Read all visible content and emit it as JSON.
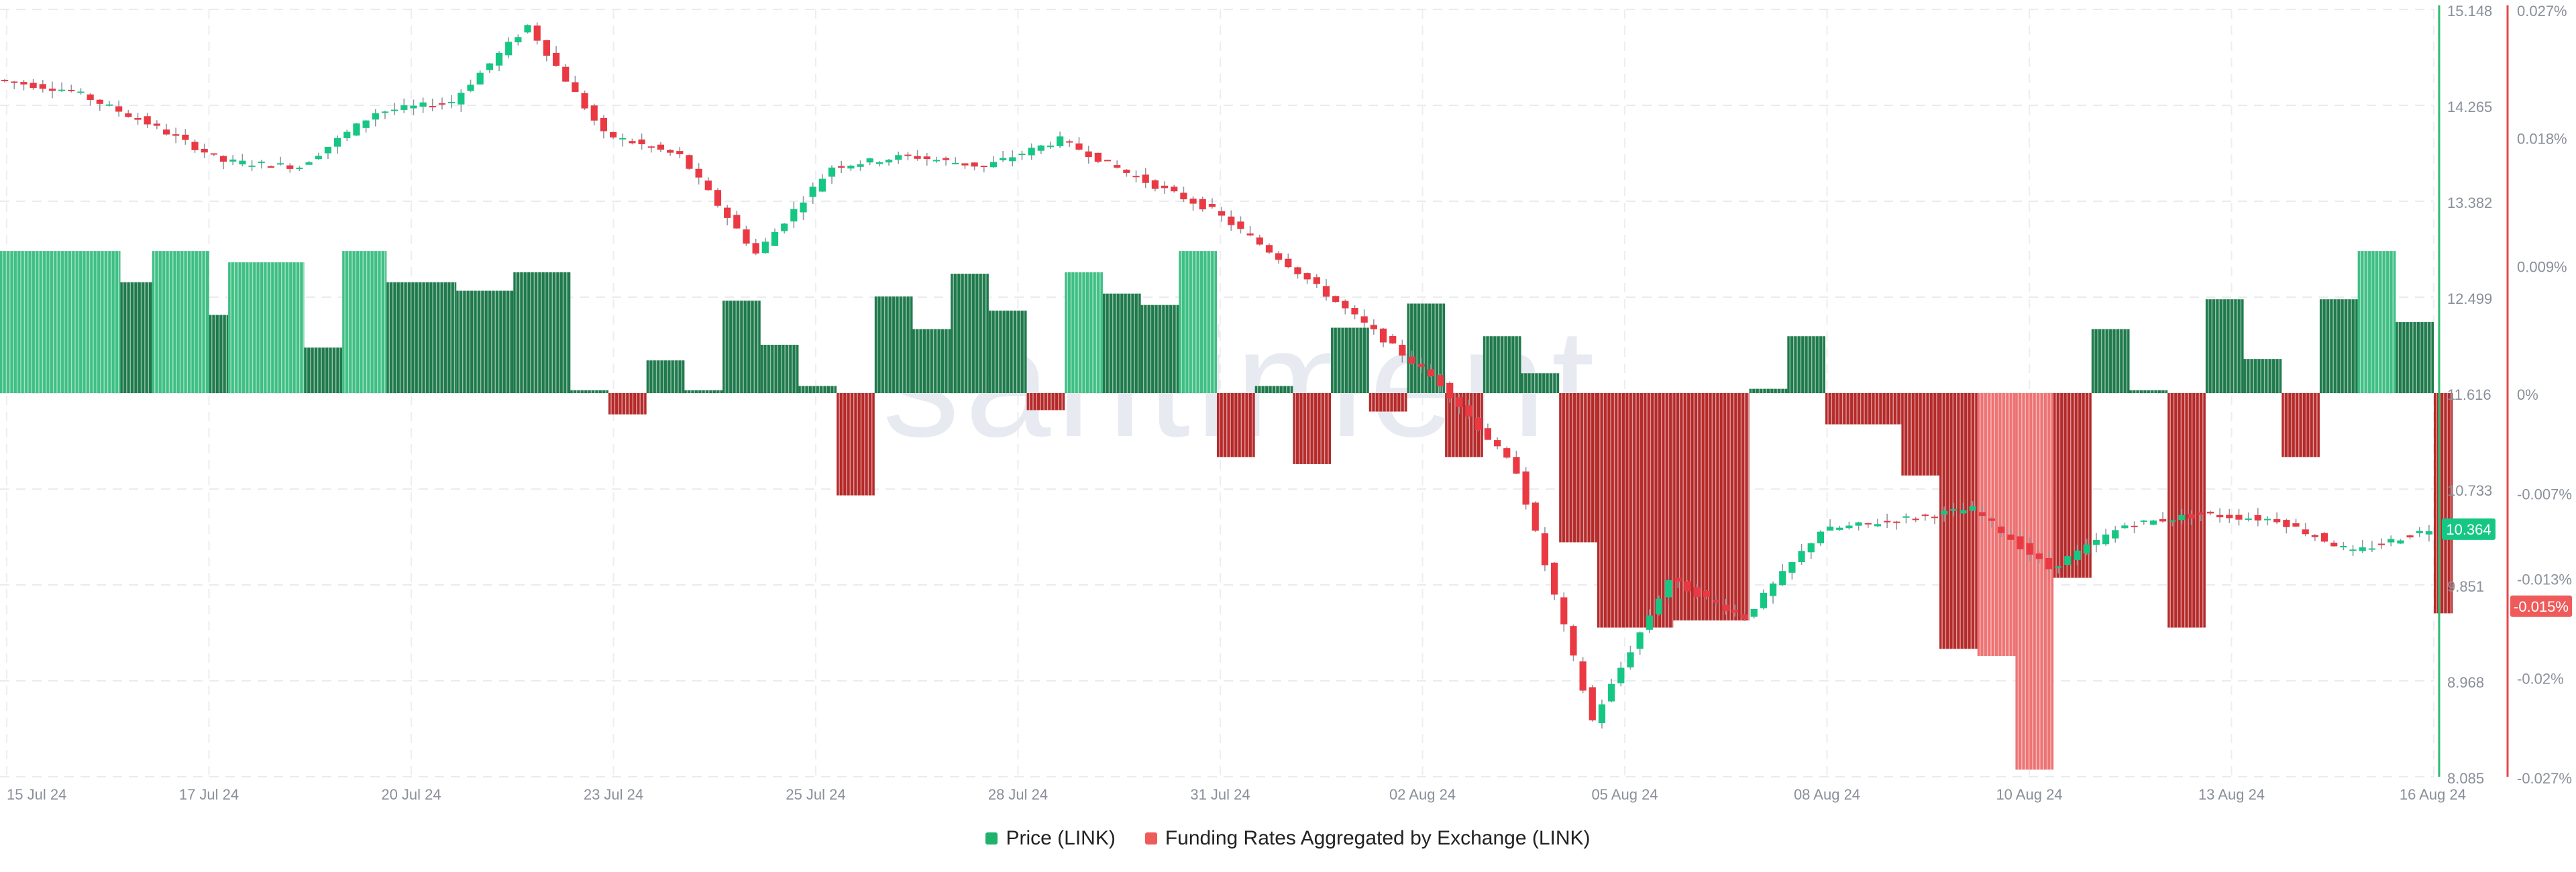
{
  "watermark": "santiment",
  "chart_data": {
    "type": "candlestick+bar",
    "x_ticks": [
      "15 Jul 24",
      "17 Jul 24",
      "20 Jul 24",
      "23 Jul 24",
      "25 Jul 24",
      "28 Jul 24",
      "31 Jul 24",
      "02 Aug 24",
      "05 Aug 24",
      "08 Aug 24",
      "10 Aug 24",
      "13 Aug 24",
      "16 Aug 24"
    ],
    "x_range": [
      "2024-07-15",
      "2024-08-16"
    ],
    "y_left": {
      "title": "Price (LINK)",
      "ticks": [
        "15.148",
        "14.265",
        "13.382",
        "12.499",
        "11.616",
        "10.733",
        "9.851",
        "8.968",
        "8.085"
      ],
      "range": [
        8.085,
        15.148
      ],
      "current_label": "10.364",
      "current_value": 10.364
    },
    "y_right": {
      "title": "Funding Rates Aggregated by Exchange (LINK)",
      "ticks": [
        "0.027%",
        "0.018%",
        "0.009%",
        "0%",
        "-0.007%",
        "-0.013%",
        "-0.02%",
        "-0.027%"
      ],
      "range": [
        -0.027,
        0.027
      ],
      "current_label": "-0.015%",
      "current_value": -0.015
    },
    "legend": [
      {
        "name": "Price (LINK)",
        "color": "#1eb26a"
      },
      {
        "name": "Funding Rates Aggregated by Exchange (LINK)",
        "color": "#ef5b5b"
      }
    ],
    "legend_position": "bottom-center",
    "grid": true,
    "colors": {
      "price_up": "#16c784",
      "price_down": "#ea3943",
      "rate_pos": "#1f7a4c",
      "rate_pos_light": "#3fbf84",
      "rate_neg": "#b52a2a",
      "rate_neg_light": "#ee7373",
      "price_axis": "#2bbd6e",
      "rate_axis": "#e5484d"
    },
    "series": [
      {
        "name": "Price (LINK)",
        "anchors": [
          [
            "2024-07-15",
            14.5
          ],
          [
            "2024-07-16",
            14.4
          ],
          [
            "2024-07-17",
            14.1
          ],
          [
            "2024-07-18",
            13.75
          ],
          [
            "2024-07-19",
            13.7
          ],
          [
            "2024-07-20",
            14.2
          ],
          [
            "2024-07-21",
            14.3
          ],
          [
            "2024-07-22",
            15.0
          ],
          [
            "2024-07-23",
            14.0
          ],
          [
            "2024-07-24",
            13.8
          ],
          [
            "2024-07-25",
            12.9
          ],
          [
            "2024-07-26",
            13.7
          ],
          [
            "2024-07-27",
            13.8
          ],
          [
            "2024-07-28",
            13.7
          ],
          [
            "2024-07-29",
            13.95
          ],
          [
            "2024-07-30",
            13.6
          ],
          [
            "2024-07-31",
            13.3
          ],
          [
            "2024-08-01",
            12.8
          ],
          [
            "2024-08-02",
            12.25
          ],
          [
            "2024-08-03",
            11.7
          ],
          [
            "2024-08-04",
            10.9
          ],
          [
            "2024-08-05",
            8.6
          ],
          [
            "2024-08-06",
            9.9
          ],
          [
            "2024-08-07",
            9.55
          ],
          [
            "2024-08-08",
            10.35
          ],
          [
            "2024-08-09",
            10.45
          ],
          [
            "2024-08-10",
            10.55
          ],
          [
            "2024-08-11",
            10.0
          ],
          [
            "2024-08-12",
            10.4
          ],
          [
            "2024-08-13",
            10.5
          ],
          [
            "2024-08-14",
            10.45
          ],
          [
            "2024-08-15",
            10.15
          ],
          [
            "2024-08-16",
            10.364
          ]
        ]
      },
      {
        "name": "Funding Rates Aggregated by Exchange (LINK)",
        "segments": [
          [
            "2024-07-15T00",
            "2024-07-16T14",
            0.01,
            "light"
          ],
          [
            "2024-07-16T14",
            "2024-07-17T00",
            0.0078,
            "dark"
          ],
          [
            "2024-07-17T00",
            "2024-07-17T18",
            0.01,
            "light"
          ],
          [
            "2024-07-17T18",
            "2024-07-18T00",
            0.0055,
            "dark"
          ],
          [
            "2024-07-18T00",
            "2024-07-19T00",
            0.0092,
            "light"
          ],
          [
            "2024-07-19T00",
            "2024-07-19T12",
            0.0032,
            "dark"
          ],
          [
            "2024-07-19T12",
            "2024-07-20T02",
            0.01,
            "light"
          ],
          [
            "2024-07-20T02",
            "2024-07-21T00",
            0.0078,
            "dark"
          ],
          [
            "2024-07-21T00",
            "2024-07-21T18",
            0.0072,
            "dark"
          ],
          [
            "2024-07-21T18",
            "2024-07-22T12",
            0.0085,
            "dark"
          ],
          [
            "2024-07-22T12",
            "2024-07-23T00",
            0.0002,
            "dark"
          ],
          [
            "2024-07-23T00",
            "2024-07-23T12",
            -0.0015,
            "dark"
          ],
          [
            "2024-07-23T12",
            "2024-07-24T00",
            0.0023,
            "dark"
          ],
          [
            "2024-07-24T00",
            "2024-07-24T12",
            0.0002,
            "dark"
          ],
          [
            "2024-07-24T12",
            "2024-07-25T00",
            0.0065,
            "dark"
          ],
          [
            "2024-07-25T00",
            "2024-07-25T12",
            0.0034,
            "dark"
          ],
          [
            "2024-07-25T12",
            "2024-07-26T00",
            0.0005,
            "dark"
          ],
          [
            "2024-07-26T00",
            "2024-07-26T12",
            -0.0072,
            "dark"
          ],
          [
            "2024-07-26T12",
            "2024-07-27T00",
            0.0068,
            "dark"
          ],
          [
            "2024-07-27T00",
            "2024-07-27T12",
            0.0045,
            "dark"
          ],
          [
            "2024-07-27T12",
            "2024-07-28T00",
            0.0084,
            "dark"
          ],
          [
            "2024-07-28T00",
            "2024-07-28T12",
            0.0058,
            "dark"
          ],
          [
            "2024-07-28T12",
            "2024-07-29T00",
            -0.0012,
            "dark"
          ],
          [
            "2024-07-29T00",
            "2024-07-29T12",
            0.0085,
            "light"
          ],
          [
            "2024-07-29T12",
            "2024-07-30T00",
            0.007,
            "dark"
          ],
          [
            "2024-07-30T00",
            "2024-07-30T12",
            0.0062,
            "dark"
          ],
          [
            "2024-07-30T12",
            "2024-07-31T00",
            0.01,
            "light"
          ],
          [
            "2024-07-31T00",
            "2024-07-31T12",
            -0.0045,
            "dark"
          ],
          [
            "2024-07-31T12",
            "2024-08-01T00",
            0.0005,
            "dark"
          ],
          [
            "2024-08-01T00",
            "2024-08-01T12",
            -0.005,
            "dark"
          ],
          [
            "2024-08-01T12",
            "2024-08-02T00",
            0.0046,
            "dark"
          ],
          [
            "2024-08-02T00",
            "2024-08-02T12",
            -0.0013,
            "dark"
          ],
          [
            "2024-08-02T12",
            "2024-08-03T00",
            0.0063,
            "dark"
          ],
          [
            "2024-08-03T00",
            "2024-08-03T12",
            -0.0045,
            "dark"
          ],
          [
            "2024-08-03T12",
            "2024-08-04T00",
            0.004,
            "dark"
          ],
          [
            "2024-08-04T00",
            "2024-08-04T12",
            0.0014,
            "dark"
          ],
          [
            "2024-08-04T12",
            "2024-08-05T00",
            -0.0105,
            "dark"
          ],
          [
            "2024-08-05T00",
            "2024-08-06T00",
            -0.0165,
            "dark"
          ],
          [
            "2024-08-06T00",
            "2024-08-07T00",
            -0.016,
            "dark"
          ],
          [
            "2024-08-07T00",
            "2024-08-07T12",
            0.0003,
            "dark"
          ],
          [
            "2024-08-07T12",
            "2024-08-08T00",
            0.004,
            "dark"
          ],
          [
            "2024-08-08T00",
            "2024-08-09T00",
            -0.0022,
            "dark"
          ],
          [
            "2024-08-09T00",
            "2024-08-09T12",
            -0.0058,
            "dark"
          ],
          [
            "2024-08-09T12",
            "2024-08-10T00",
            -0.018,
            "dark"
          ],
          [
            "2024-08-10T00",
            "2024-08-10T12",
            -0.0185,
            "light"
          ],
          [
            "2024-08-10T12",
            "2024-08-11T00",
            -0.0265,
            "light"
          ],
          [
            "2024-08-11T00",
            "2024-08-11T12",
            -0.013,
            "dark"
          ],
          [
            "2024-08-11T12",
            "2024-08-12T00",
            0.0045,
            "dark"
          ],
          [
            "2024-08-12T00",
            "2024-08-12T12",
            0.0002,
            "dark"
          ],
          [
            "2024-08-12T12",
            "2024-08-13T00",
            -0.0165,
            "dark"
          ],
          [
            "2024-08-13T00",
            "2024-08-13T12",
            0.0066,
            "dark"
          ],
          [
            "2024-08-13T12",
            "2024-08-14T00",
            0.0024,
            "dark"
          ],
          [
            "2024-08-14T00",
            "2024-08-14T12",
            -0.0045,
            "dark"
          ],
          [
            "2024-08-14T12",
            "2024-08-15T00",
            0.0066,
            "dark"
          ],
          [
            "2024-08-15T00",
            "2024-08-15T12",
            0.01,
            "light"
          ],
          [
            "2024-08-15T12",
            "2024-08-16T00",
            0.005,
            "dark"
          ],
          [
            "2024-08-16T00",
            "2024-08-16T06",
            -0.0155,
            "dark"
          ]
        ]
      }
    ]
  }
}
